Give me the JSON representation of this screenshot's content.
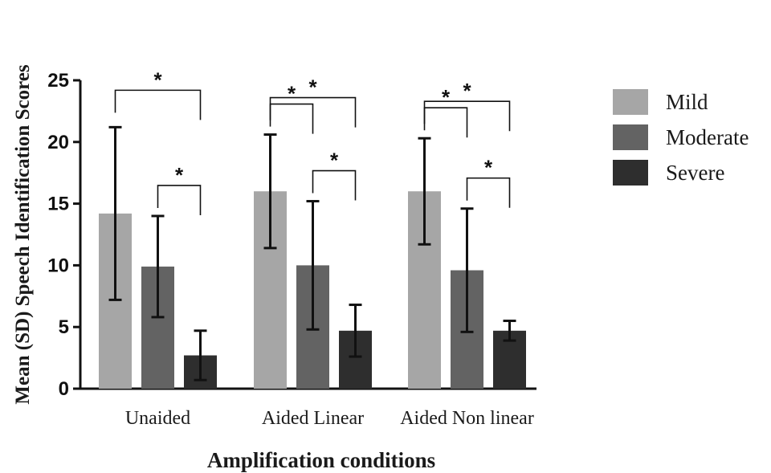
{
  "chart_data": {
    "type": "bar",
    "title": "",
    "xlabel": "Amplification conditions",
    "ylabel": "Mean (SD) Speech Identification Scores",
    "ylim": [
      0,
      25
    ],
    "yticks": [
      0,
      5,
      10,
      15,
      20,
      25
    ],
    "grid": false,
    "legend_position": "top-right",
    "categories": [
      "Unaided",
      "Aided Linear",
      "Aided Non linear"
    ],
    "series": [
      {
        "name": "Mild",
        "color": "#a6a6a6",
        "values": [
          14.2,
          16.0,
          16.0
        ],
        "sd": [
          7.0,
          4.6,
          4.3
        ]
      },
      {
        "name": "Moderate",
        "color": "#636363",
        "values": [
          9.9,
          10.0,
          9.6
        ],
        "sd": [
          4.1,
          5.2,
          5.0
        ]
      },
      {
        "name": "Severe",
        "color": "#2e2e2e",
        "values": [
          2.7,
          4.7,
          4.7
        ],
        "sd": [
          2.0,
          2.1,
          0.8
        ]
      }
    ],
    "significance": [
      {
        "category": 0,
        "from": 0,
        "to": 2,
        "label": "*"
      },
      {
        "category": 0,
        "from": 1,
        "to": 2,
        "label": "*"
      },
      {
        "category": 1,
        "from": 0,
        "to": 1,
        "label": "*"
      },
      {
        "category": 1,
        "from": 0,
        "to": 2,
        "label": "*"
      },
      {
        "category": 1,
        "from": 1,
        "to": 2,
        "label": "*"
      },
      {
        "category": 2,
        "from": 0,
        "to": 1,
        "label": "*"
      },
      {
        "category": 2,
        "from": 0,
        "to": 2,
        "label": "*"
      },
      {
        "category": 2,
        "from": 1,
        "to": 2,
        "label": "*"
      }
    ]
  }
}
